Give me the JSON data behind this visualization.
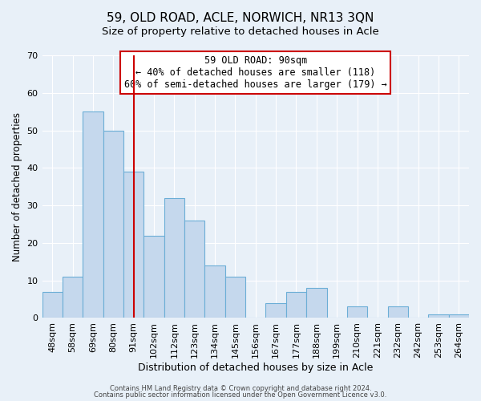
{
  "title": "59, OLD ROAD, ACLE, NORWICH, NR13 3QN",
  "subtitle": "Size of property relative to detached houses in Acle",
  "xlabel": "Distribution of detached houses by size in Acle",
  "ylabel": "Number of detached properties",
  "bar_labels": [
    "48sqm",
    "58sqm",
    "69sqm",
    "80sqm",
    "91sqm",
    "102sqm",
    "112sqm",
    "123sqm",
    "134sqm",
    "145sqm",
    "156sqm",
    "167sqm",
    "177sqm",
    "188sqm",
    "199sqm",
    "210sqm",
    "221sqm",
    "232sqm",
    "242sqm",
    "253sqm",
    "264sqm"
  ],
  "bar_values": [
    7,
    11,
    55,
    50,
    39,
    22,
    32,
    26,
    14,
    11,
    0,
    4,
    7,
    8,
    0,
    3,
    0,
    3,
    0,
    1,
    1
  ],
  "bar_color": "#c5d8ed",
  "bar_edge_color": "#6baed6",
  "ylim": [
    0,
    70
  ],
  "yticks": [
    0,
    10,
    20,
    30,
    40,
    50,
    60,
    70
  ],
  "vline_x": 4.5,
  "vline_color": "#cc0000",
  "annotation_title": "59 OLD ROAD: 90sqm",
  "annotation_line1": "← 40% of detached houses are smaller (118)",
  "annotation_line2": "60% of semi-detached houses are larger (179) →",
  "annotation_box_color": "#ffffff",
  "annotation_box_edge": "#cc0000",
  "bg_color": "#e8f0f8",
  "plot_bg_color": "#e8f0f8",
  "footer1": "Contains HM Land Registry data © Crown copyright and database right 2024.",
  "footer2": "Contains public sector information licensed under the Open Government Licence v3.0.",
  "title_fontsize": 11,
  "subtitle_fontsize": 9.5,
  "xlabel_fontsize": 9,
  "ylabel_fontsize": 8.5,
  "tick_fontsize": 8,
  "footer_fontsize": 6
}
